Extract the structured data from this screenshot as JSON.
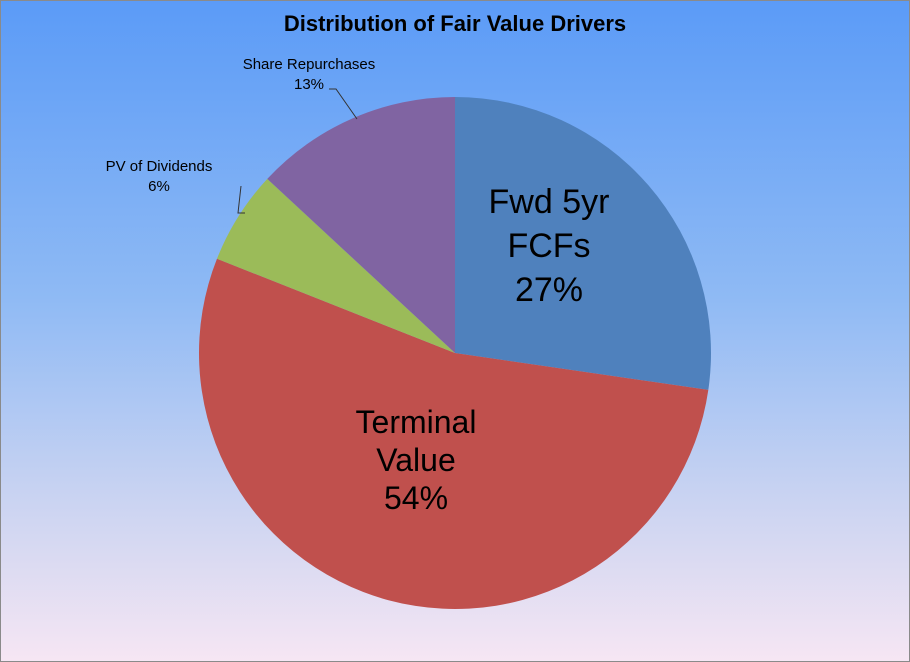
{
  "chart_data": {
    "type": "pie",
    "title": "Distribution of Fair Value Drivers",
    "slices": [
      {
        "label_lines": [
          "Fwd 5yr",
          "FCFs"
        ],
        "percent_label": "27%",
        "value": 27.3,
        "color": "#4f81bd",
        "label_placement": "inside"
      },
      {
        "label_lines": [
          "Terminal",
          "Value"
        ],
        "percent_label": "54%",
        "value": 53.7,
        "color": "#c0504d",
        "label_placement": "inside"
      },
      {
        "label_lines": [
          "PV of Dividends"
        ],
        "percent_label": "6%",
        "value": 5.9,
        "color": "#9bbb59",
        "label_placement": "outside"
      },
      {
        "label_lines": [
          "Share Repurchases"
        ],
        "percent_label": "13%",
        "value": 13.1,
        "color": "#8064a2",
        "label_placement": "outside"
      }
    ],
    "start_angle": "12 o'clock, clockwise"
  }
}
